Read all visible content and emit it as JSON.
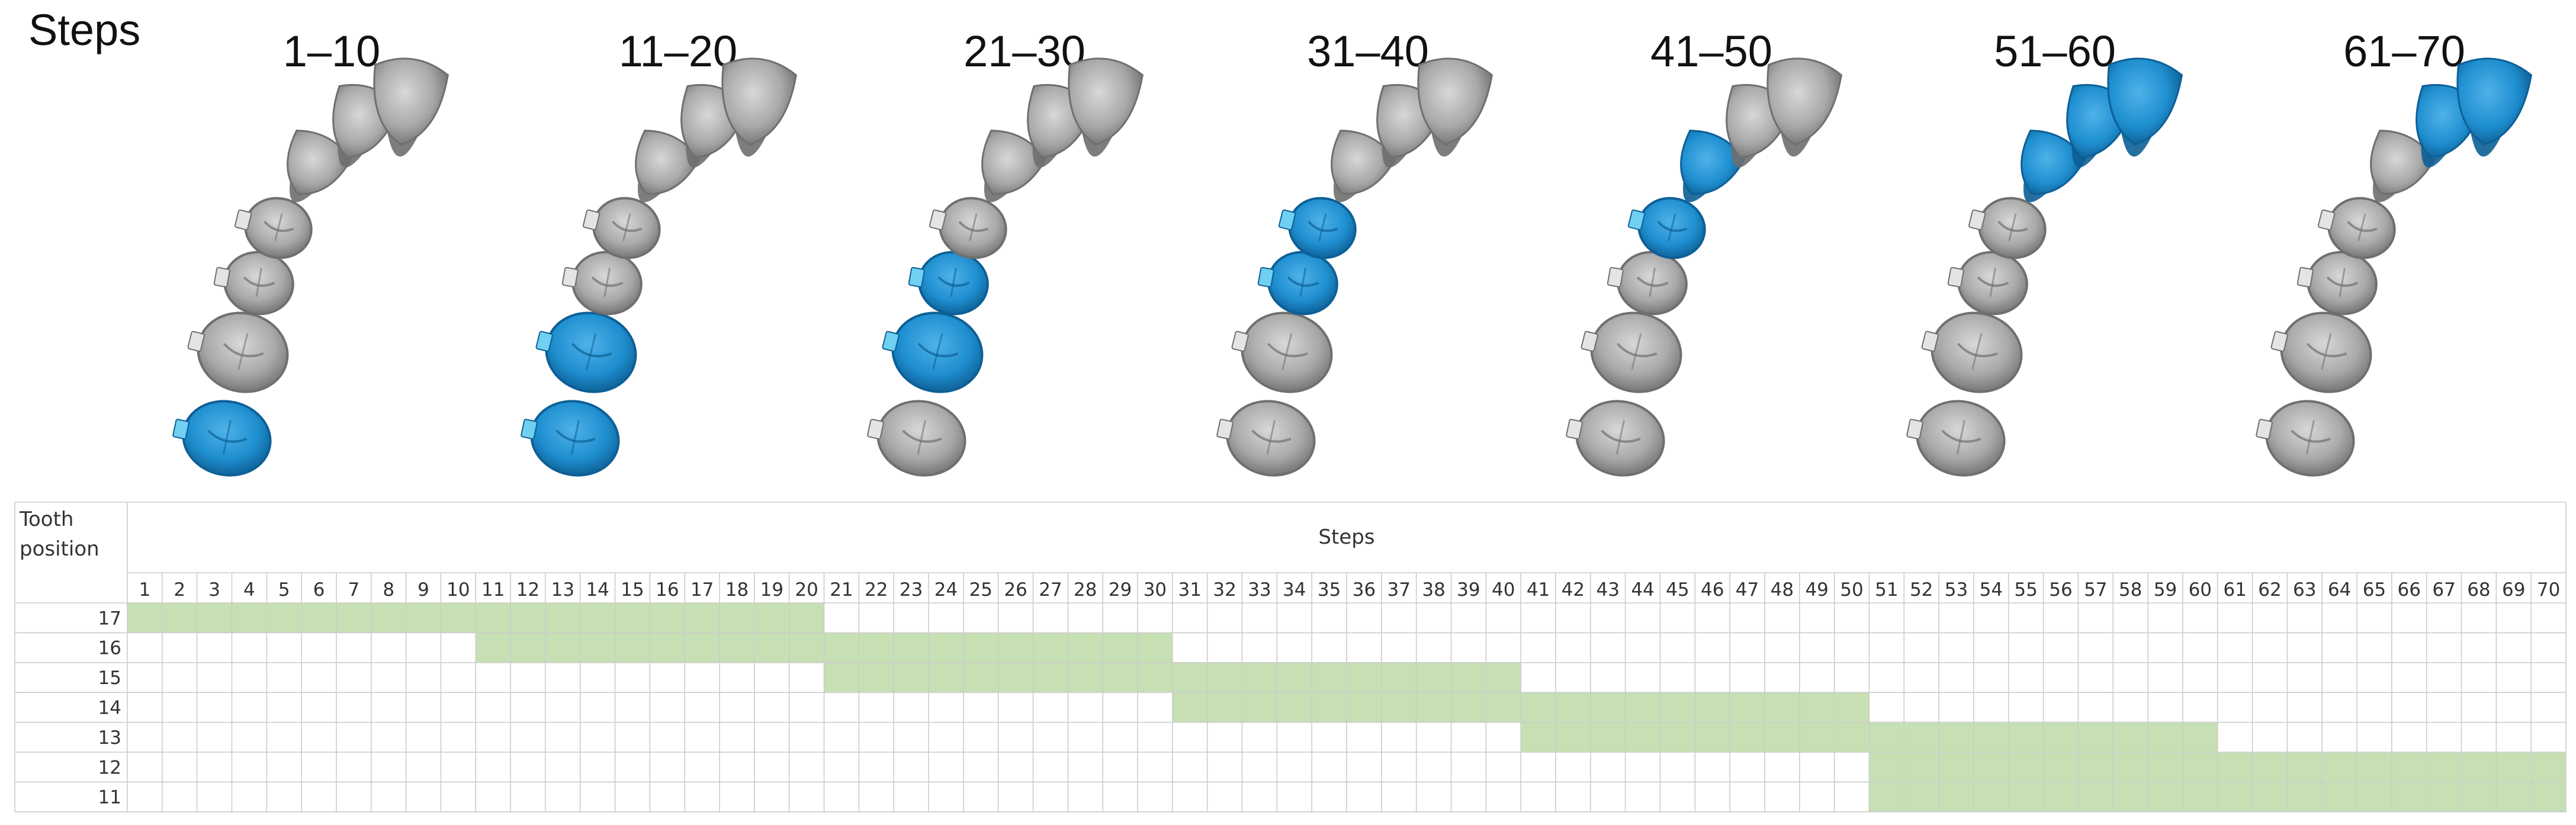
{
  "figure": {
    "steps_word": "Steps",
    "stages": [
      {
        "label": "1–10",
        "moving_teeth": [
          17
        ]
      },
      {
        "label": "11–20",
        "moving_teeth": [
          17,
          16
        ]
      },
      {
        "label": "21–30",
        "moving_teeth": [
          16,
          15
        ]
      },
      {
        "label": "31–40",
        "moving_teeth": [
          15,
          14
        ]
      },
      {
        "label": "41–50",
        "moving_teeth": [
          14,
          13
        ]
      },
      {
        "label": "51–60",
        "moving_teeth": [
          13,
          12,
          11
        ]
      },
      {
        "label": "61–70",
        "moving_teeth": [
          12,
          11
        ]
      }
    ],
    "colors": {
      "moving_tooth": "#1f8fd0",
      "moving_tooth_dark": "#0d5f96",
      "static_tooth": "#a7a7a7",
      "static_tooth_dark": "#6f6f6f",
      "attachment": "#6fd0f2",
      "bar": "#c6e0b4",
      "grid": "#cccccc"
    }
  },
  "table": {
    "row_header_label_line1": "Tooth",
    "row_header_label_line2": "position",
    "steps_label": "Steps",
    "step_numbers": [
      "1",
      "2",
      "3",
      "4",
      "5",
      "6",
      "7",
      "8",
      "9",
      "10",
      "11",
      "12",
      "13",
      "14",
      "15",
      "16",
      "17",
      "18",
      "19",
      "20",
      "21",
      "22",
      "23",
      "24",
      "25",
      "26",
      "27",
      "28",
      "29",
      "30",
      "31",
      "32",
      "33",
      "34",
      "35",
      "36",
      "37",
      "38",
      "39",
      "40",
      "41",
      "42",
      "43",
      "44",
      "45",
      "46",
      "47",
      "48",
      "49",
      "50",
      "51",
      "52",
      "53",
      "54",
      "55",
      "56",
      "57",
      "58",
      "59",
      "60",
      "61",
      "62",
      "63",
      "64",
      "65",
      "66",
      "67",
      "68",
      "69",
      "70"
    ],
    "rows": [
      {
        "tooth": "17",
        "start": 1,
        "end": 20
      },
      {
        "tooth": "16",
        "start": 11,
        "end": 30
      },
      {
        "tooth": "15",
        "start": 21,
        "end": 40
      },
      {
        "tooth": "14",
        "start": 31,
        "end": 50
      },
      {
        "tooth": "13",
        "start": 41,
        "end": 60
      },
      {
        "tooth": "12",
        "start": 51,
        "end": 70
      },
      {
        "tooth": "11",
        "start": 51,
        "end": 70
      }
    ]
  }
}
